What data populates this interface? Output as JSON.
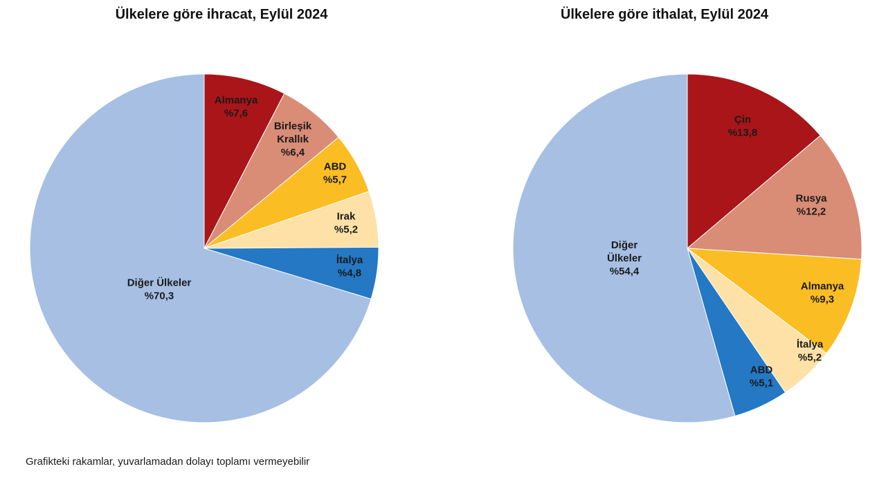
{
  "footnote": "Grafikteki rakamlar, yuvarlamadan dolayı toplamı vermeyebilir",
  "chart_data": [
    {
      "type": "pie",
      "title": "Ülkelere göre ihracat, Eylül 2024",
      "start": "12 o'clock",
      "direction": "clockwise",
      "slices": [
        {
          "label": [
            "Almanya"
          ],
          "value": 7.6,
          "value_text": "%7,6",
          "color": "#a91519"
        },
        {
          "label": [
            "Birleşik",
            "Krallık"
          ],
          "value": 6.4,
          "value_text": "%6,4",
          "color": "#d98c76"
        },
        {
          "label": [
            "ABD"
          ],
          "value": 5.7,
          "value_text": "%5,7",
          "color": "#fbbd24"
        },
        {
          "label": [
            "Irak"
          ],
          "value": 5.2,
          "value_text": "%5,2",
          "color": "#fde1a6"
        },
        {
          "label": [
            "İtalya"
          ],
          "value": 4.8,
          "value_text": "%4,8",
          "color": "#2478c4"
        },
        {
          "label": [
            "Diğer Ülkeler"
          ],
          "value": 70.3,
          "value_text": "%70,3",
          "color": "#a6bfe3"
        }
      ]
    },
    {
      "type": "pie",
      "title": "Ülkelere göre ithalat, Eylül 2024",
      "start": "12 o'clock",
      "direction": "clockwise",
      "slices": [
        {
          "label": [
            "Çin"
          ],
          "value": 13.8,
          "value_text": "%13,8",
          "color": "#a91519"
        },
        {
          "label": [
            "Rusya"
          ],
          "value": 12.2,
          "value_text": "%12,2",
          "color": "#d98c76"
        },
        {
          "label": [
            "Almanya"
          ],
          "value": 9.3,
          "value_text": "%9,3",
          "color": "#fbbd24"
        },
        {
          "label": [
            "İtalya"
          ],
          "value": 5.2,
          "value_text": "%5,2",
          "color": "#fde1a6"
        },
        {
          "label": [
            "ABD"
          ],
          "value": 5.1,
          "value_text": "%5,1",
          "color": "#2478c4"
        },
        {
          "label": [
            "Diğer",
            "Ülkeler"
          ],
          "value": 54.4,
          "value_text": "%54,4",
          "color": "#a6bfe3"
        }
      ]
    }
  ]
}
